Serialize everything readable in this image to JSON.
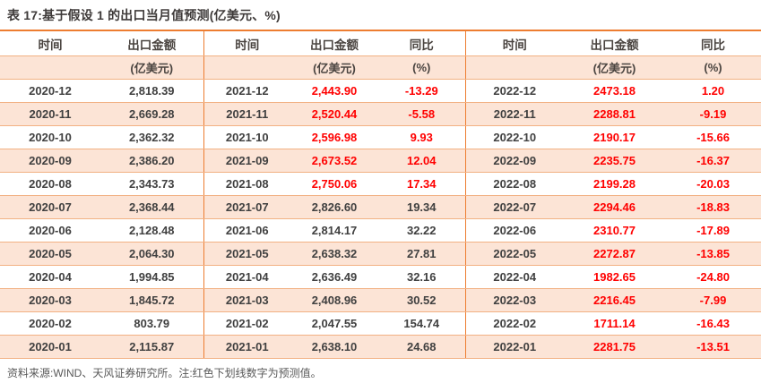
{
  "title": "表 17:基于假设 1 的出口当月值预测(亿美元、%)",
  "footer": "资料来源:WIND、天风证券研究所。注:红色下划线数字为预测值。",
  "colors": {
    "accent_orange": "#ed7d31",
    "row_stripe": "#fce4d6",
    "row_line": "#f2b183",
    "title_text": "#3e3a39",
    "header_text": "#4a4440",
    "body_text": "#404040",
    "forecast_red": "#ff0000",
    "note_gray": "#595959"
  },
  "table": {
    "groups": [
      {
        "headers": [
          "时间",
          "出口金额"
        ],
        "subheaders": [
          "",
          "(亿美元)"
        ]
      },
      {
        "headers": [
          "时间",
          "出口金额",
          "同比"
        ],
        "subheaders": [
          "",
          "(亿美元)",
          "(%)"
        ]
      },
      {
        "headers": [
          "时间",
          "出口金额",
          "同比"
        ],
        "subheaders": [
          "",
          "(亿美元)",
          "(%)"
        ]
      }
    ],
    "rows": [
      {
        "cells": [
          "2020-12",
          "2,818.39",
          "2021-12",
          "2,443.90",
          "-13.29",
          "2022-12",
          "2473.18",
          "1.20"
        ],
        "red": [
          0,
          0,
          0,
          1,
          1,
          0,
          1,
          1
        ]
      },
      {
        "cells": [
          "2020-11",
          "2,669.28",
          "2021-11",
          "2,520.44",
          "-5.58",
          "2022-11",
          "2288.81",
          "-9.19"
        ],
        "red": [
          0,
          0,
          0,
          1,
          1,
          0,
          1,
          1
        ]
      },
      {
        "cells": [
          "2020-10",
          "2,362.32",
          "2021-10",
          "2,596.98",
          "9.93",
          "2022-10",
          "2190.17",
          "-15.66"
        ],
        "red": [
          0,
          0,
          0,
          1,
          1,
          0,
          1,
          1
        ]
      },
      {
        "cells": [
          "2020-09",
          "2,386.20",
          "2021-09",
          "2,673.52",
          "12.04",
          "2022-09",
          "2235.75",
          "-16.37"
        ],
        "red": [
          0,
          0,
          0,
          1,
          1,
          0,
          1,
          1
        ]
      },
      {
        "cells": [
          "2020-08",
          "2,343.73",
          "2021-08",
          "2,750.06",
          "17.34",
          "2022-08",
          "2199.28",
          "-20.03"
        ],
        "red": [
          0,
          0,
          0,
          1,
          1,
          0,
          1,
          1
        ]
      },
      {
        "cells": [
          "2020-07",
          "2,368.44",
          "2021-07",
          "2,826.60",
          "19.34",
          "2022-07",
          "2294.46",
          "-18.83"
        ],
        "red": [
          0,
          0,
          0,
          0,
          0,
          0,
          1,
          1
        ]
      },
      {
        "cells": [
          "2020-06",
          "2,128.48",
          "2021-06",
          "2,814.17",
          "32.22",
          "2022-06",
          "2310.77",
          "-17.89"
        ],
        "red": [
          0,
          0,
          0,
          0,
          0,
          0,
          1,
          1
        ]
      },
      {
        "cells": [
          "2020-05",
          "2,064.30",
          "2021-05",
          "2,638.32",
          "27.81",
          "2022-05",
          "2272.87",
          "-13.85"
        ],
        "red": [
          0,
          0,
          0,
          0,
          0,
          0,
          1,
          1
        ]
      },
      {
        "cells": [
          "2020-04",
          "1,994.85",
          "2021-04",
          "2,636.49",
          "32.16",
          "2022-04",
          "1982.65",
          "-24.80"
        ],
        "red": [
          0,
          0,
          0,
          0,
          0,
          0,
          1,
          1
        ]
      },
      {
        "cells": [
          "2020-03",
          "1,845.72",
          "2021-03",
          "2,408.96",
          "30.52",
          "2022-03",
          "2216.45",
          "-7.99"
        ],
        "red": [
          0,
          0,
          0,
          0,
          0,
          0,
          1,
          1
        ]
      },
      {
        "cells": [
          "2020-02",
          "803.79",
          "2021-02",
          "2,047.55",
          "154.74",
          "2022-02",
          "1711.14",
          "-16.43"
        ],
        "red": [
          0,
          0,
          0,
          0,
          0,
          0,
          1,
          1
        ]
      },
      {
        "cells": [
          "2020-01",
          "2,115.87",
          "2021-01",
          "2,638.10",
          "24.68",
          "2022-01",
          "2281.75",
          "-13.51"
        ],
        "red": [
          0,
          0,
          0,
          0,
          0,
          0,
          1,
          1
        ]
      }
    ]
  }
}
